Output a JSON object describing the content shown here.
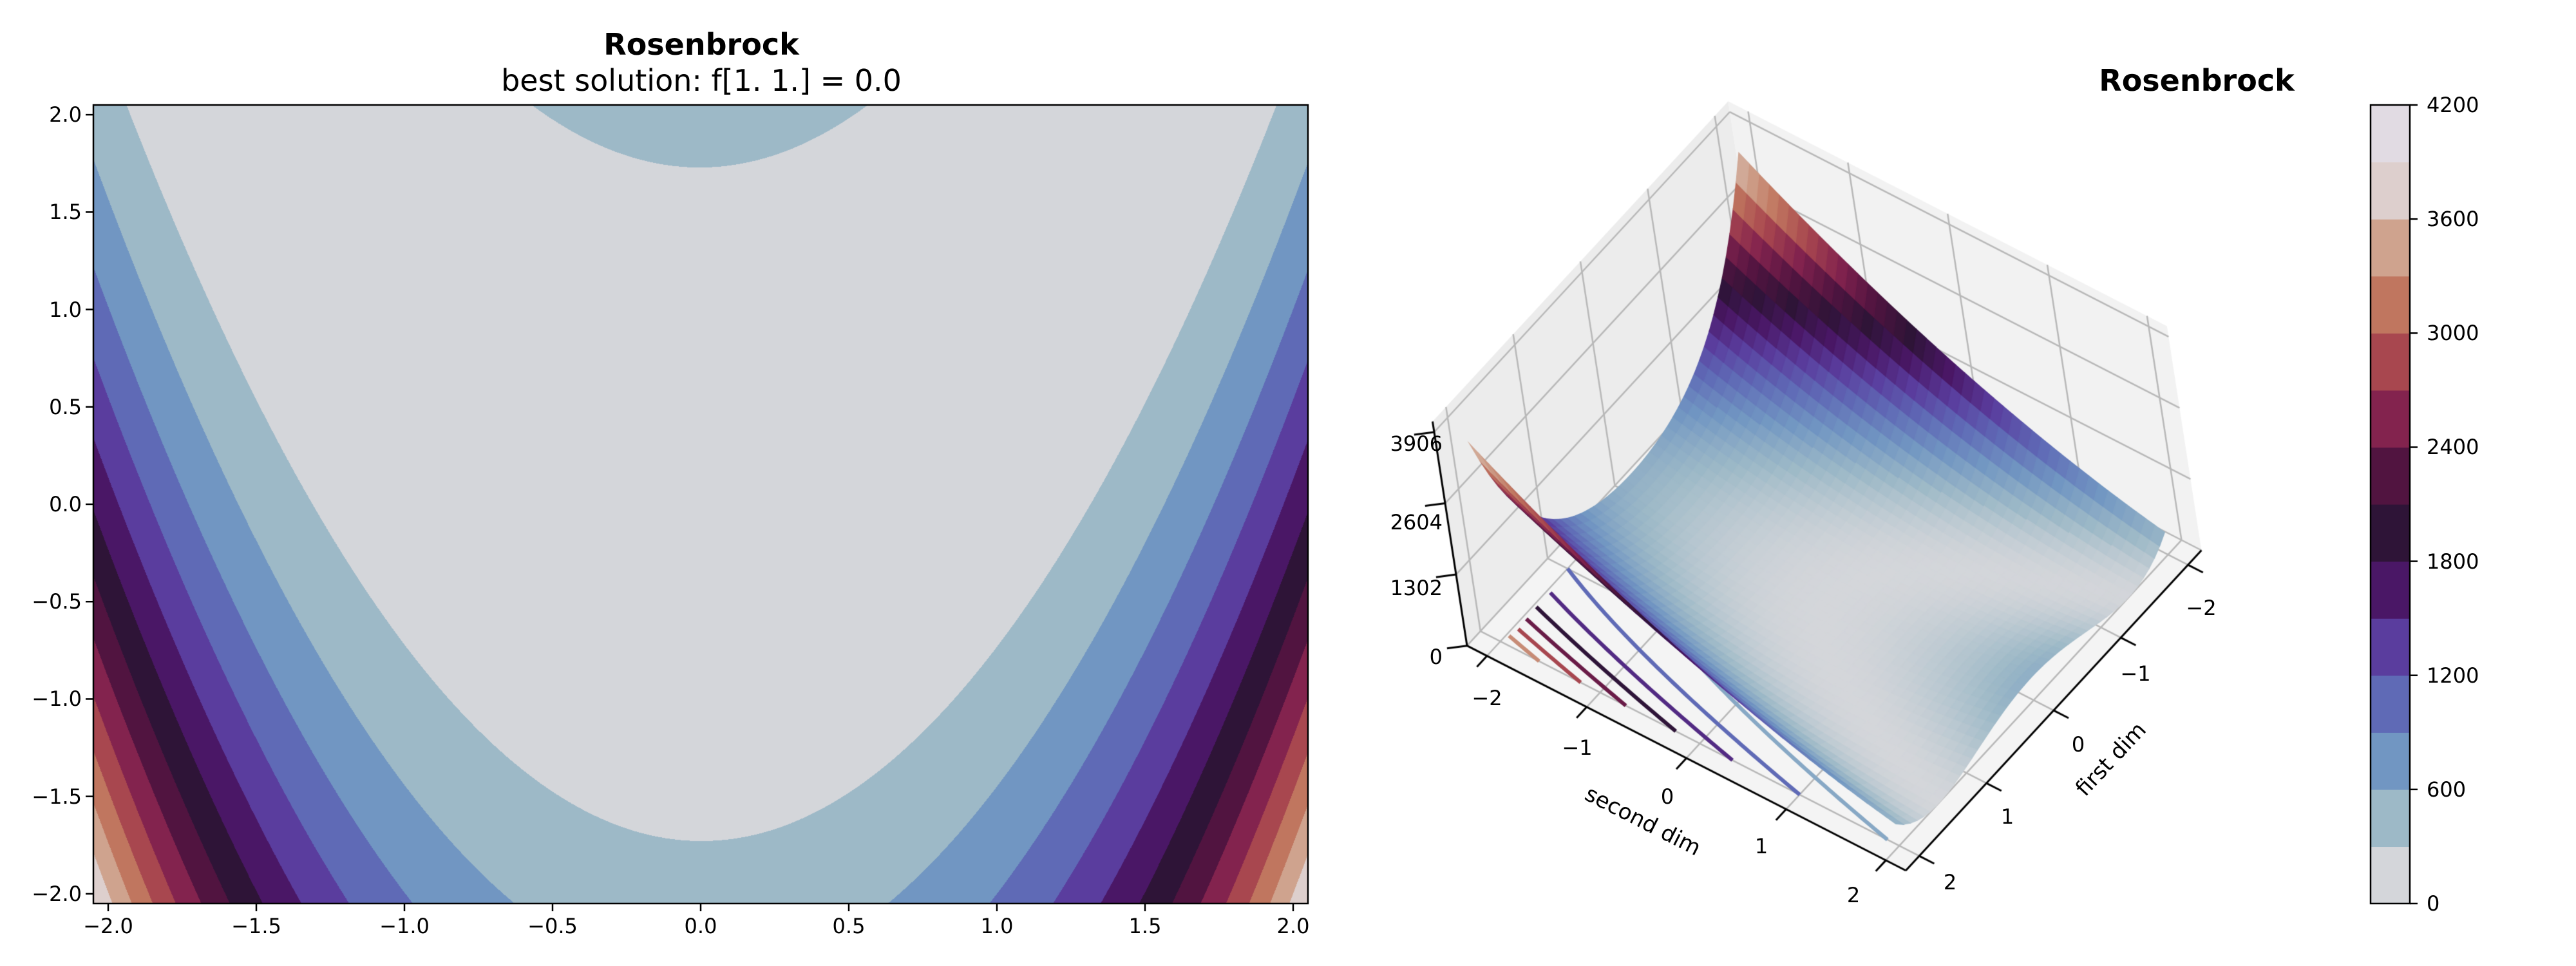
{
  "chart_data": [
    {
      "type": "contour",
      "function": "(1-x)^2 + 100*(y-x^2)^2",
      "title": "Rosenbrock",
      "subtitle": "best solution: f[1. 1.] = 0.0",
      "xlim": [
        -2.05,
        2.05
      ],
      "ylim": [
        -2.05,
        2.05
      ],
      "xticks": [
        -2.0,
        -1.5,
        -1.0,
        -0.5,
        0.0,
        0.5,
        1.0,
        1.5,
        2.0
      ],
      "xtick_labels": [
        "−2.0",
        "−1.5",
        "−1.0",
        "−0.5",
        "0.0",
        "0.5",
        "1.0",
        "1.5",
        "2.0"
      ],
      "yticks": [
        2.0,
        1.5,
        1.0,
        0.5,
        0.0,
        -0.5,
        -1.0,
        -1.5,
        -2.0
      ],
      "ytick_labels": [
        "2.0",
        "1.5",
        "1.0",
        "0.5",
        "0.0",
        "−0.5",
        "−1.0",
        "−1.5",
        "−2.0"
      ],
      "levels": [
        0,
        300,
        600,
        900,
        1200,
        1500,
        1800,
        2100,
        2400,
        2700,
        3000,
        3300,
        3600,
        3900,
        4200
      ]
    },
    {
      "type": "surface",
      "function": "(1-x)^2 + 100*(y-x^2)^2",
      "title": "Rosenbrock",
      "xlabel": "first dim",
      "ylabel": "second dim",
      "xlim": [
        -2,
        2
      ],
      "ylim": [
        -2,
        2
      ],
      "zlim": [
        0,
        3906
      ],
      "xtick_labels": [
        "−2",
        "−1",
        "0",
        "1",
        "2"
      ],
      "ytick_labels": [
        "−2",
        "−1",
        "0",
        "1",
        "2"
      ],
      "zticks": [
        0,
        1302,
        2604,
        3906
      ],
      "ztick_labels": [
        "0",
        "1302",
        "2604",
        "3906"
      ],
      "floor_contour_levels": [
        450,
        900,
        1350,
        1800,
        2250,
        2700,
        3150,
        3600
      ]
    },
    {
      "type": "colorbar",
      "range": [
        0,
        4200
      ],
      "tick_labels": [
        "4200",
        "3600",
        "3000",
        "2400",
        "1800",
        "1200",
        "600",
        "0"
      ],
      "ticks": [
        4200,
        3600,
        3000,
        2400,
        1800,
        1200,
        600,
        0
      ]
    }
  ],
  "colormap": [
    "#d4d6da",
    "#9db9c7",
    "#7196c2",
    "#5f6ab6",
    "#5a3d9e",
    "#4a1766",
    "#2e1437",
    "#511440",
    "#83234e",
    "#a8474f",
    "#c0765f",
    "#cfa38e",
    "#ddcfcd",
    "#e1dbe3"
  ]
}
